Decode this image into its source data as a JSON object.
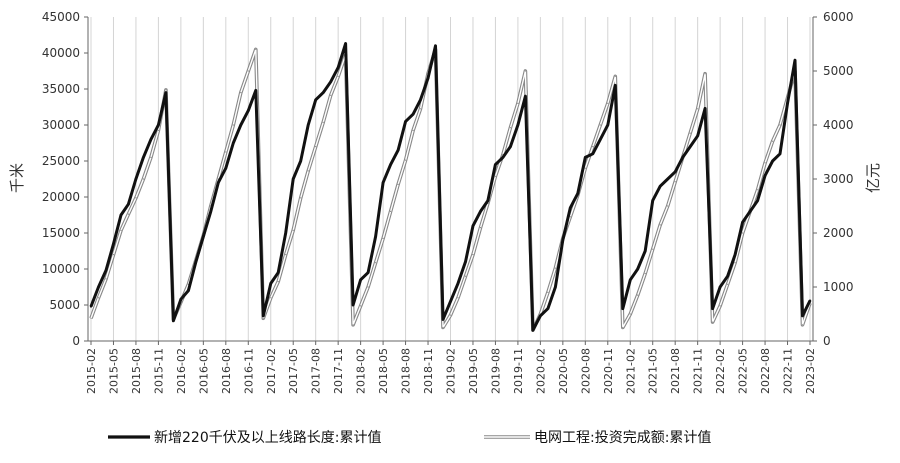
{
  "chart_data": {
    "type": "line",
    "title": "",
    "ylabel_left": "千米",
    "ylabel_right": "亿元",
    "ylim_left": [
      0,
      45000
    ],
    "ylim_right": [
      0,
      6000
    ],
    "yticks_left": [
      "0",
      "5000",
      "10000",
      "15000",
      "20000",
      "25000",
      "30000",
      "35000",
      "40000",
      "45000"
    ],
    "yticks_right": [
      "0",
      "1000",
      "2000",
      "3000",
      "4000",
      "5000",
      "6000"
    ],
    "xticks": [
      "2015-02",
      "2015-05",
      "2015-08",
      "2015-11",
      "2016-02",
      "2016-05",
      "2016-08",
      "2016-11",
      "2017-02",
      "2017-05",
      "2017-08",
      "2017-11",
      "2018-02",
      "2018-05",
      "2018-08",
      "2018-11",
      "2019-02",
      "2019-05",
      "2019-08",
      "2019-11",
      "2020-02",
      "2020-05",
      "2020-08",
      "2020-11",
      "2021-02",
      "2021-05",
      "2021-08",
      "2021-11",
      "2022-02",
      "2022-05",
      "2022-08",
      "2022-11",
      "2023-02"
    ],
    "legend_position": "bottom",
    "series": [
      {
        "name": "新增220千伏及以上线路长度:累计值",
        "axis": "left",
        "color": "#111111",
        "style": "solid-thick",
        "points": [
          [
            "2015-02",
            4800
          ],
          [
            "2015-03",
            7500
          ],
          [
            "2015-04",
            9800
          ],
          [
            "2015-05",
            13500
          ],
          [
            "2015-06",
            17500
          ],
          [
            "2015-07",
            19000
          ],
          [
            "2015-08",
            22500
          ],
          [
            "2015-09",
            25500
          ],
          [
            "2015-10",
            28000
          ],
          [
            "2015-11",
            30000
          ],
          [
            "2015-12",
            34500
          ],
          [
            "2016-01",
            2800
          ],
          [
            "2016-02",
            5800
          ],
          [
            "2016-03",
            7000
          ],
          [
            "2016-04",
            11000
          ],
          [
            "2016-05",
            14500
          ],
          [
            "2016-06",
            18000
          ],
          [
            "2016-07",
            22000
          ],
          [
            "2016-08",
            24000
          ],
          [
            "2016-09",
            27500
          ],
          [
            "2016-10",
            30000
          ],
          [
            "2016-11",
            32000
          ],
          [
            "2016-12",
            34800
          ],
          [
            "2017-01",
            3500
          ],
          [
            "2017-02",
            8000
          ],
          [
            "2017-03",
            9500
          ],
          [
            "2017-04",
            15000
          ],
          [
            "2017-05",
            22500
          ],
          [
            "2017-06",
            25000
          ],
          [
            "2017-07",
            30000
          ],
          [
            "2017-08",
            33500
          ],
          [
            "2017-09",
            34500
          ],
          [
            "2017-10",
            36000
          ],
          [
            "2017-11",
            38000
          ],
          [
            "2017-12",
            41300
          ],
          [
            "2018-01",
            5000
          ],
          [
            "2018-02",
            8500
          ],
          [
            "2018-03",
            9500
          ],
          [
            "2018-04",
            14500
          ],
          [
            "2018-05",
            22000
          ],
          [
            "2018-06",
            24500
          ],
          [
            "2018-07",
            26500
          ],
          [
            "2018-08",
            30500
          ],
          [
            "2018-09",
            31500
          ],
          [
            "2018-10",
            33500
          ],
          [
            "2018-11",
            36500
          ],
          [
            "2018-12",
            41000
          ],
          [
            "2019-01",
            3000
          ],
          [
            "2019-02",
            5500
          ],
          [
            "2019-03",
            8000
          ],
          [
            "2019-04",
            11000
          ],
          [
            "2019-05",
            16000
          ],
          [
            "2019-06",
            18000
          ],
          [
            "2019-07",
            19500
          ],
          [
            "2019-08",
            24500
          ],
          [
            "2019-09",
            25500
          ],
          [
            "2019-10",
            27000
          ],
          [
            "2019-11",
            30000
          ],
          [
            "2019-12",
            34000
          ],
          [
            "2020-01",
            1500
          ],
          [
            "2020-02",
            3500
          ],
          [
            "2020-03",
            4500
          ],
          [
            "2020-04",
            7500
          ],
          [
            "2020-05",
            14000
          ],
          [
            "2020-06",
            18500
          ],
          [
            "2020-07",
            20500
          ],
          [
            "2020-08",
            25500
          ],
          [
            "2020-09",
            26000
          ],
          [
            "2020-10",
            28000
          ],
          [
            "2020-11",
            30000
          ],
          [
            "2020-12",
            35500
          ],
          [
            "2021-01",
            4500
          ],
          [
            "2021-02",
            8500
          ],
          [
            "2021-03",
            10000
          ],
          [
            "2021-04",
            12500
          ],
          [
            "2021-05",
            19500
          ],
          [
            "2021-06",
            21500
          ],
          [
            "2021-07",
            22500
          ],
          [
            "2021-08",
            23500
          ],
          [
            "2021-09",
            25500
          ],
          [
            "2021-10",
            27000
          ],
          [
            "2021-11",
            28500
          ],
          [
            "2021-12",
            32300
          ],
          [
            "2022-01",
            4500
          ],
          [
            "2022-02",
            7500
          ],
          [
            "2022-03",
            9000
          ],
          [
            "2022-04",
            12000
          ],
          [
            "2022-05",
            16500
          ],
          [
            "2022-06",
            18000
          ],
          [
            "2022-07",
            19500
          ],
          [
            "2022-08",
            23000
          ],
          [
            "2022-09",
            25000
          ],
          [
            "2022-10",
            26000
          ],
          [
            "2022-11",
            33000
          ],
          [
            "2022-12",
            39000
          ],
          [
            "2023-01",
            3500
          ],
          [
            "2023-02",
            5600
          ]
        ]
      },
      {
        "name": "电网工程:投资完成额:累计值",
        "axis": "right",
        "color": "#888888",
        "style": "double-line",
        "points": [
          [
            "2015-02",
            420
          ],
          [
            "2015-03",
            800
          ],
          [
            "2015-04",
            1150
          ],
          [
            "2015-05",
            1600
          ],
          [
            "2015-06",
            2050
          ],
          [
            "2015-07",
            2350
          ],
          [
            "2015-08",
            2650
          ],
          [
            "2015-09",
            3000
          ],
          [
            "2015-10",
            3400
          ],
          [
            "2015-11",
            3900
          ],
          [
            "2015-12",
            4650
          ],
          [
            "2016-01",
            400
          ],
          [
            "2016-02",
            720
          ],
          [
            "2016-03",
            1050
          ],
          [
            "2016-04",
            1500
          ],
          [
            "2016-05",
            1950
          ],
          [
            "2016-06",
            2500
          ],
          [
            "2016-07",
            3000
          ],
          [
            "2016-08",
            3500
          ],
          [
            "2016-09",
            4000
          ],
          [
            "2016-10",
            4600
          ],
          [
            "2016-11",
            5000
          ],
          [
            "2016-12",
            5400
          ],
          [
            "2017-01",
            420
          ],
          [
            "2017-02",
            800
          ],
          [
            "2017-03",
            1100
          ],
          [
            "2017-04",
            1600
          ],
          [
            "2017-05",
            2050
          ],
          [
            "2017-06",
            2650
          ],
          [
            "2017-07",
            3150
          ],
          [
            "2017-08",
            3600
          ],
          [
            "2017-09",
            4050
          ],
          [
            "2017-10",
            4550
          ],
          [
            "2017-11",
            4900
          ],
          [
            "2017-12",
            5300
          ],
          [
            "2018-01",
            300
          ],
          [
            "2018-02",
            650
          ],
          [
            "2018-03",
            1000
          ],
          [
            "2018-04",
            1450
          ],
          [
            "2018-05",
            1900
          ],
          [
            "2018-06",
            2400
          ],
          [
            "2018-07",
            2900
          ],
          [
            "2018-08",
            3350
          ],
          [
            "2018-09",
            3900
          ],
          [
            "2018-10",
            4300
          ],
          [
            "2018-11",
            4950
          ],
          [
            "2018-12",
            5400
          ],
          [
            "2019-01",
            250
          ],
          [
            "2019-02",
            480
          ],
          [
            "2019-03",
            800
          ],
          [
            "2019-04",
            1200
          ],
          [
            "2019-05",
            1600
          ],
          [
            "2019-06",
            2100
          ],
          [
            "2019-07",
            2550
          ],
          [
            "2019-08",
            3050
          ],
          [
            "2019-09",
            3450
          ],
          [
            "2019-10",
            3950
          ],
          [
            "2019-11",
            4400
          ],
          [
            "2019-12",
            5000
          ],
          [
            "2020-01",
            200
          ],
          [
            "2020-02",
            500
          ],
          [
            "2020-03",
            900
          ],
          [
            "2020-04",
            1350
          ],
          [
            "2020-05",
            1900
          ],
          [
            "2020-06",
            2300
          ],
          [
            "2020-07",
            2700
          ],
          [
            "2020-08",
            3200
          ],
          [
            "2020-09",
            3600
          ],
          [
            "2020-10",
            4000
          ],
          [
            "2020-11",
            4400
          ],
          [
            "2020-12",
            4900
          ],
          [
            "2021-01",
            250
          ],
          [
            "2021-02",
            500
          ],
          [
            "2021-03",
            850
          ],
          [
            "2021-04",
            1250
          ],
          [
            "2021-05",
            1700
          ],
          [
            "2021-06",
            2150
          ],
          [
            "2021-07",
            2500
          ],
          [
            "2021-08",
            2950
          ],
          [
            "2021-09",
            3400
          ],
          [
            "2021-10",
            3850
          ],
          [
            "2021-11",
            4300
          ],
          [
            "2021-12",
            4950
          ],
          [
            "2022-01",
            350
          ],
          [
            "2022-02",
            650
          ],
          [
            "2022-03",
            1050
          ],
          [
            "2022-04",
            1450
          ],
          [
            "2022-05",
            2000
          ],
          [
            "2022-06",
            2400
          ],
          [
            "2022-07",
            2800
          ],
          [
            "2022-08",
            3300
          ],
          [
            "2022-09",
            3700
          ],
          [
            "2022-10",
            4000
          ],
          [
            "2022-11",
            4500
          ],
          [
            "2022-12",
            5000
          ],
          [
            "2023-01",
            300
          ],
          [
            "2023-02",
            700
          ]
        ]
      }
    ]
  }
}
